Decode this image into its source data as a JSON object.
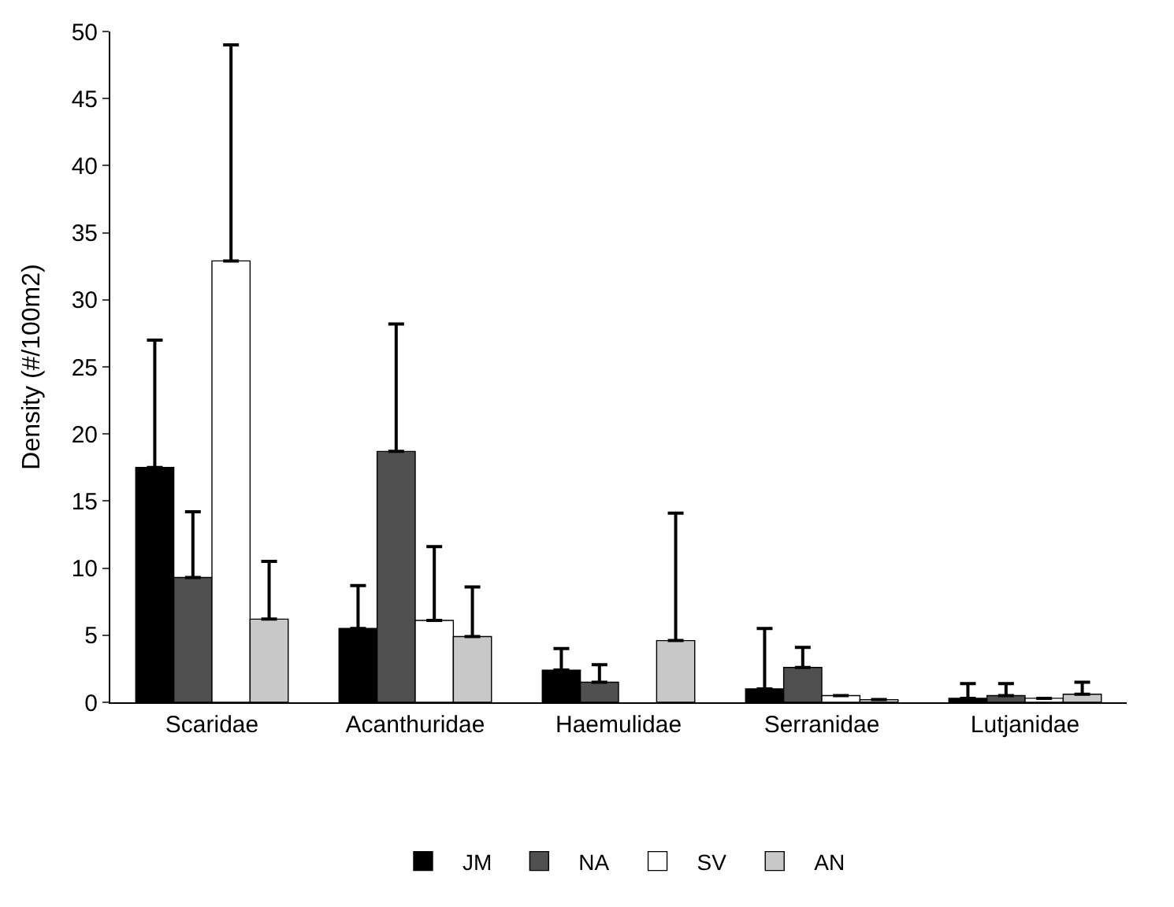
{
  "chart_data": {
    "type": "bar",
    "ylabel": "Density (#/100m2)",
    "categories": [
      "Scaridae",
      "Acanthuridae",
      "Haemulidae",
      "Serranidae",
      "Lutjanidae"
    ],
    "series": [
      {
        "name": "JM",
        "color": "#000000",
        "values": [
          17.5,
          5.5,
          2.4,
          1.0,
          0.3
        ],
        "errors": [
          [
            17.5,
            27
          ],
          [
            5.5,
            8.7
          ],
          [
            2.4,
            4.0
          ],
          [
            1.0,
            5.5
          ],
          [
            0.3,
            1.4
          ]
        ]
      },
      {
        "name": "NA",
        "color": "#505050",
        "values": [
          9.3,
          18.7,
          1.5,
          2.6,
          0.5
        ],
        "errors": [
          [
            9.3,
            14.2
          ],
          [
            18.7,
            28.2
          ],
          [
            1.5,
            2.8
          ],
          [
            2.6,
            4.1
          ],
          [
            0.5,
            1.4
          ]
        ]
      },
      {
        "name": "SV",
        "color": "#ffffff",
        "values": [
          32.9,
          6.1,
          null,
          0.5,
          0.3
        ],
        "errors": [
          [
            32.9,
            49
          ],
          [
            6.1,
            11.6
          ],
          null,
          null,
          null
        ]
      },
      {
        "name": "AN",
        "color": "#c8c8c8",
        "values": [
          6.2,
          4.9,
          4.6,
          0.2,
          0.6
        ],
        "errors": [
          [
            6.2,
            10.5
          ],
          [
            4.9,
            8.6
          ],
          [
            4.6,
            14.1
          ],
          null,
          [
            0.6,
            1.5
          ]
        ]
      }
    ],
    "ylim": [
      0,
      50
    ],
    "yticks": [
      0,
      5,
      10,
      15,
      20,
      25,
      30,
      35,
      40,
      45,
      50
    ],
    "legend": "bottom"
  }
}
